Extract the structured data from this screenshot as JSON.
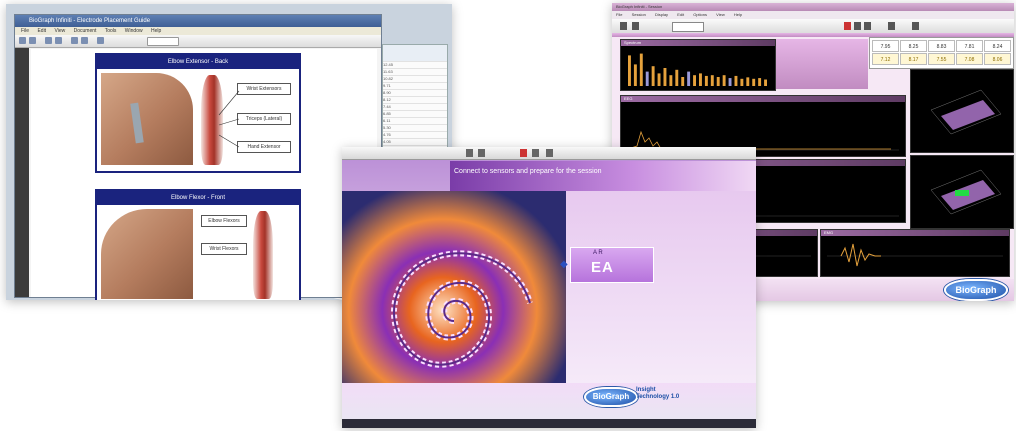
{
  "shot1": {
    "title": "BioGraph Infiniti - Electrode Placement Guide",
    "menu": [
      "File",
      "Edit",
      "View",
      "Document",
      "Tools",
      "Window",
      "Help"
    ],
    "panel1": {
      "title": "Elbow Extensor - Back",
      "labels": [
        "Wrist Extensors",
        "Triceps (Lateral)",
        "Hand Extensor"
      ]
    },
    "panel2": {
      "title": "Elbow Flexor - Front",
      "labels": [
        "Elbow Flexors",
        "Wrist Flexors"
      ]
    },
    "side_rows": [
      "12.45",
      "11.63",
      "10.82",
      "9.71",
      "8.90",
      "8.12",
      "7.44",
      "6.85",
      "6.11",
      "5.30",
      "4.76",
      "4.05",
      "3.62"
    ]
  },
  "shot2": {
    "title": "BioGraph Infiniti - Session",
    "menu": [
      "File",
      "Session",
      "Display",
      "Edit",
      "Options",
      "View",
      "Help"
    ],
    "top_values": [
      "7.95",
      "8.25",
      "8.83",
      "7.81",
      "8.24"
    ],
    "bottom_values": [
      "7.12",
      "8.17",
      "7.55",
      "7.08",
      "8.06"
    ],
    "graph_titles": [
      "Spectrum",
      "EEG",
      "Heart Rate",
      "Respiration",
      "EMG"
    ],
    "logo": "BioGraph"
  },
  "shot3": {
    "banner": "Connect to sensors and prepare for the session",
    "selection_prompt": "A R",
    "selection_big": "EA",
    "logo": "BioGraph",
    "insight_lines": [
      "Insight",
      "Technology 1.0"
    ]
  },
  "colors": {
    "navy_panel": "#1a237e",
    "graph_orange": "#e6a23c",
    "graph_blue": "#3355ff",
    "magenta": "#b67dd6"
  }
}
